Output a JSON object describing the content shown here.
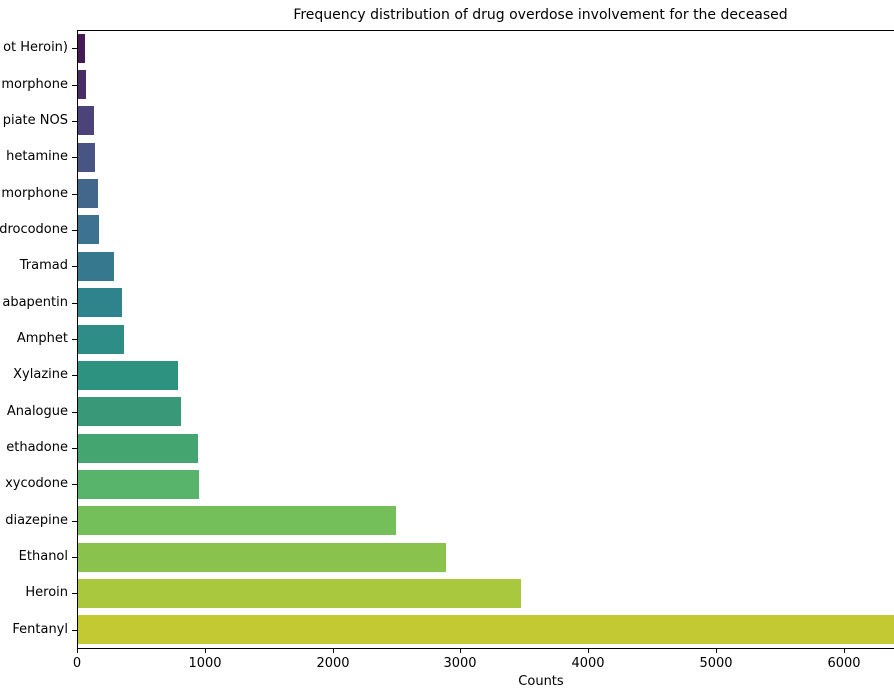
{
  "figure": {
    "background_color": "#ffffff",
    "axis_color": "#000000"
  },
  "chart_data": {
    "type": "bar",
    "orientation": "horizontal",
    "title": "Frequency distribution of drug overdose involvement for the deceased",
    "xlabel": "Counts",
    "ylabel": "",
    "categories": [
      "ot Heroin)",
      "morphone",
      "piate NOS",
      "hetamine",
      "morphone",
      "drocodone",
      "Tramad",
      "abapentin",
      "Amphet",
      "Xylazine",
      "Analogue",
      "ethadone",
      "xycodone",
      "diazepine",
      "Ethanol",
      "Heroin",
      "Fentanyl"
    ],
    "values": [
      57,
      66,
      125,
      131,
      160,
      165,
      282,
      345,
      363,
      786,
      805,
      937,
      945,
      2491,
      2879,
      3469,
      6428
    ],
    "colors": [
      "#461a54",
      "#4a2d67",
      "#4c437a",
      "#485484",
      "#42678b",
      "#3d7390",
      "#36798e",
      "#2f838c",
      "#2e8d87",
      "#2d9280",
      "#389877",
      "#45a571",
      "#58b36b",
      "#74bf5a",
      "#8ac24e",
      "#aac83e",
      "#c2c933"
    ],
    "x_ticks": [
      0,
      1000,
      2000,
      3000,
      4000,
      5000,
      6000
    ],
    "x_tick_labels": [
      "0",
      "1000",
      "2000",
      "3000",
      "4000",
      "5000",
      "6000"
    ],
    "xlim": [
      0,
      6390
    ],
    "grid": false,
    "legend": false
  }
}
